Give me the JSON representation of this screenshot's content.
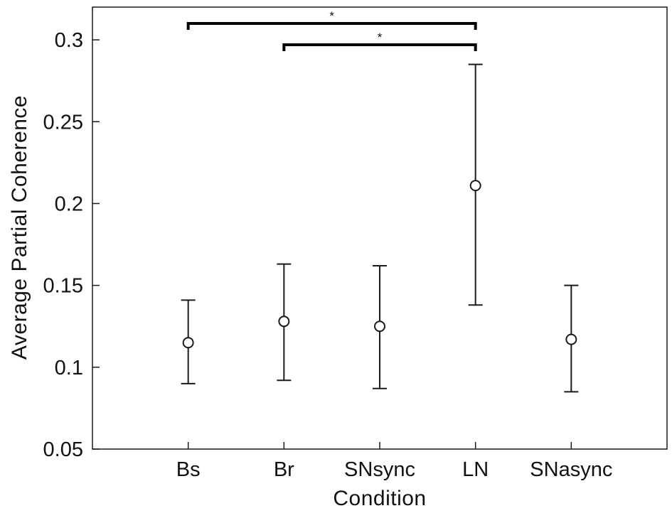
{
  "figure": {
    "background": "#ffffff"
  },
  "chart_data": {
    "type": "scatter",
    "subtype": "mean-with-error-bars",
    "xlabel": "Condition",
    "ylabel": "Average Partial Coherence",
    "categories": [
      "Bs",
      "Br",
      "SNsync",
      "LN",
      "SNasync"
    ],
    "series": [
      {
        "name": "Average Partial Coherence",
        "means": [
          0.115,
          0.128,
          0.125,
          0.211,
          0.117
        ],
        "err_low": [
          0.09,
          0.092,
          0.087,
          0.138,
          0.085
        ],
        "err_high": [
          0.141,
          0.163,
          0.162,
          0.285,
          0.15
        ]
      }
    ],
    "ylim": [
      0.05,
      0.32
    ],
    "yticks": [
      0.05,
      0.1,
      0.15,
      0.2,
      0.25,
      0.3
    ],
    "ytick_labels": [
      "0.05",
      "0.1",
      "0.15",
      "0.2",
      "0.25",
      "0.3"
    ],
    "grid": false,
    "marker": "open-circle",
    "axis_color": "#1a1a1a",
    "marker_color": "#1a1a1a",
    "significance_brackets": [
      {
        "from": "Bs",
        "to": "LN",
        "y": 0.31,
        "label": "*"
      },
      {
        "from": "Br",
        "to": "LN",
        "y": 0.297,
        "label": "*"
      }
    ]
  }
}
